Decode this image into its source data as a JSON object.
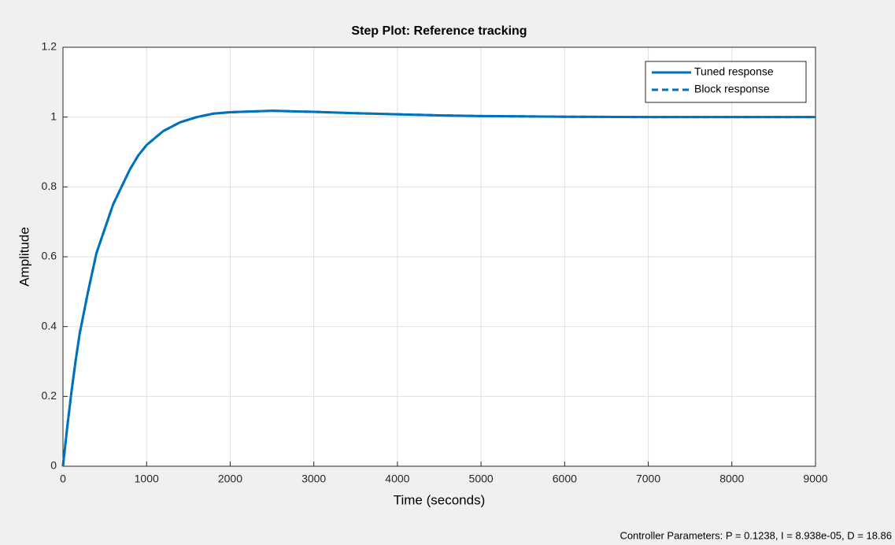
{
  "chart_data": {
    "type": "line",
    "title": "Step Plot: Reference tracking",
    "xlabel": "Time (seconds)",
    "ylabel": "Amplitude",
    "x": [
      0,
      50,
      100,
      150,
      200,
      300,
      400,
      500,
      600,
      700,
      800,
      900,
      1000,
      1200,
      1400,
      1600,
      1800,
      2000,
      2500,
      3000,
      3500,
      4000,
      4500,
      5000,
      6000,
      7000,
      8000,
      9000
    ],
    "series": [
      {
        "name": "Tuned response",
        "color": "#0072bd",
        "dash": false,
        "values": [
          0,
          0.11,
          0.21,
          0.3,
          0.38,
          0.5,
          0.61,
          0.68,
          0.75,
          0.8,
          0.85,
          0.89,
          0.92,
          0.96,
          0.985,
          1.0,
          1.01,
          1.014,
          1.018,
          1.015,
          1.011,
          1.008,
          1.005,
          1.003,
          1.001,
          1.0,
          1.0,
          1.0
        ]
      },
      {
        "name": "Block response",
        "color": "#0072bd",
        "dash": true,
        "values": [
          0,
          0.11,
          0.21,
          0.3,
          0.38,
          0.5,
          0.61,
          0.68,
          0.75,
          0.8,
          0.85,
          0.89,
          0.92,
          0.96,
          0.985,
          1.0,
          1.01,
          1.014,
          1.018,
          1.015,
          1.011,
          1.008,
          1.005,
          1.003,
          1.001,
          1.0,
          1.0,
          1.0
        ]
      }
    ],
    "xlim": [
      0,
      9000
    ],
    "xticks": [
      0,
      1000,
      2000,
      3000,
      4000,
      5000,
      6000,
      7000,
      8000,
      9000
    ],
    "ylim": [
      0,
      1.2
    ],
    "yticks": [
      0,
      0.2,
      0.4,
      0.6,
      0.8,
      1,
      1.2
    ],
    "grid": true,
    "legend": "upper right"
  },
  "footer": "Controller Parameters: P = 0.1238, I = 8.938e-05, D = 18.86"
}
